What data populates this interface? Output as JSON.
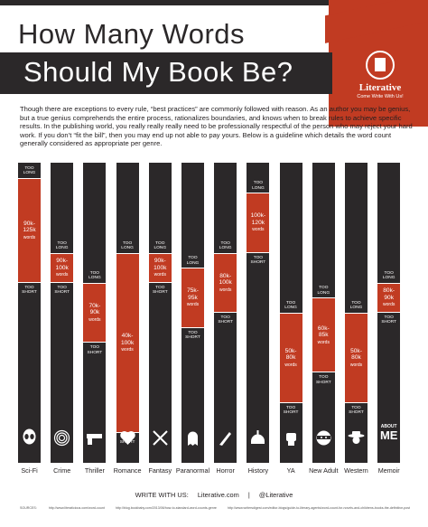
{
  "title": {
    "line1": "How Many Words",
    "line2": "Should My Book Be?"
  },
  "logo": {
    "name": "Literative",
    "tagline": "Come Write With Us!"
  },
  "intro": "Though there are exceptions to every rule, “best practices” are commonly followed with reason. As an author you may be genius, but a true genius comprehends the entire process, rationalizes boundaries, and knows when to break rules to achieve specific results. In the publishing world, you really really really need to be professionally respectful of the person who may reject your hard work. If you don’t “fit the bill”, then you may end up not able to pay yours. Below is a guideline which details the word count generally considered as appropriate per genre.",
  "labels": {
    "too_long": "TOO LONG",
    "too_short": "TOO SHORT"
  },
  "footer": {
    "write": "WRITE WITH US:",
    "site": "Literative.com",
    "divider": "|",
    "handle": "@Literative"
  },
  "refs": {
    "label": "SOURCES:",
    "items": [
      "http://www.literaticious.com/word-count",
      "http://blog.bookbaby.com/2013/06/how-to-standard-word-counts-genre",
      "http://www.writersdigest.com/editor-blogs/guide-to-literary-agents/word-count-for-novels-and-childrens-books-the-definitive-post"
    ]
  },
  "colors": {
    "dark": "#2b2829",
    "red": "#c13b22",
    "bg": "#ffffff"
  },
  "chart_data": {
    "type": "range-bar",
    "unit": "words",
    "categories": [
      "Sci-Fi",
      "Crime",
      "Thriller",
      "Romance",
      "Fantasy",
      "Paranormal",
      "Horror",
      "History",
      "YA",
      "New Adult",
      "Western",
      "Memoir"
    ],
    "icons": [
      "alien-icon",
      "fingerprint-icon",
      "gun-icon",
      "heart-icon",
      "swords-icon",
      "ghost-icon",
      "knife-icon",
      "helmet-icon",
      "fist-icon",
      "ninja-icon",
      "cowboy-icon",
      "about-me-icon"
    ],
    "series": [
      {
        "name": "Sci-Fi",
        "min": 90000,
        "max": 125000,
        "range_label": "90k-125k",
        "unit_label": "words"
      },
      {
        "name": "Crime",
        "min": 90000,
        "max": 100000,
        "range_label": "90k-100k",
        "unit_label": "words"
      },
      {
        "name": "Thriller",
        "min": 70000,
        "max": 90000,
        "range_label": "70k-90k",
        "unit_label": "words"
      },
      {
        "name": "Romance",
        "min": 40000,
        "max": 100000,
        "range_label": "40k-100k",
        "unit_label": "words"
      },
      {
        "name": "Fantasy",
        "min": 90000,
        "max": 100000,
        "range_label": "90k-100k",
        "unit_label": "words"
      },
      {
        "name": "Paranormal",
        "min": 75000,
        "max": 95000,
        "range_label": "75k-95k",
        "unit_label": "words"
      },
      {
        "name": "Horror",
        "min": 80000,
        "max": 100000,
        "range_label": "80k-100k",
        "unit_label": "words"
      },
      {
        "name": "History",
        "min": 100000,
        "max": 120000,
        "range_label": "100k-120k",
        "unit_label": "words"
      },
      {
        "name": "YA",
        "min": 50000,
        "max": 80000,
        "range_label": "50k-80k",
        "unit_label": "words"
      },
      {
        "name": "New Adult",
        "min": 60000,
        "max": 85000,
        "range_label": "60k-85k",
        "unit_label": "words"
      },
      {
        "name": "Western",
        "min": 50000,
        "max": 80000,
        "range_label": "50k-80k",
        "unit_label": "words"
      },
      {
        "name": "Memoir",
        "min": 80000,
        "max": 90000,
        "range_label": "80k-90k",
        "unit_label": "words"
      }
    ]
  }
}
